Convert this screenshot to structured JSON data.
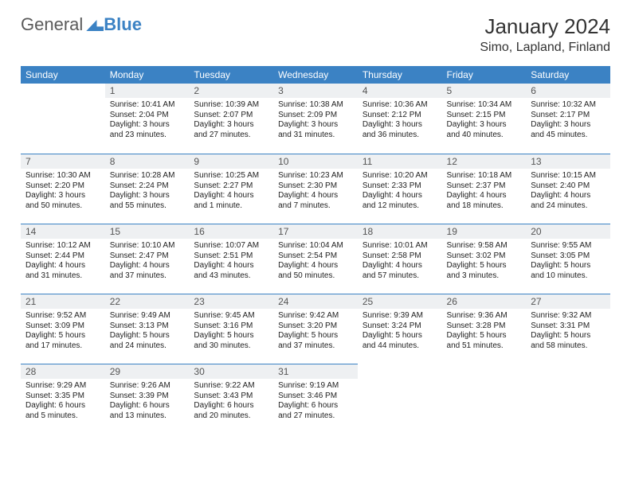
{
  "logo": {
    "word1": "General",
    "word2": "Blue"
  },
  "title": "January 2024",
  "location": "Simo, Lapland, Finland",
  "colors": {
    "header_bg": "#3b82c4",
    "header_fg": "#ffffff",
    "daynum_bg": "#eef0f2",
    "text": "#222222"
  },
  "weekdays": [
    "Sunday",
    "Monday",
    "Tuesday",
    "Wednesday",
    "Thursday",
    "Friday",
    "Saturday"
  ],
  "weeks": [
    [
      null,
      {
        "n": "1",
        "sr": "Sunrise: 10:41 AM",
        "ss": "Sunset: 2:04 PM",
        "d1": "Daylight: 3 hours",
        "d2": "and 23 minutes."
      },
      {
        "n": "2",
        "sr": "Sunrise: 10:39 AM",
        "ss": "Sunset: 2:07 PM",
        "d1": "Daylight: 3 hours",
        "d2": "and 27 minutes."
      },
      {
        "n": "3",
        "sr": "Sunrise: 10:38 AM",
        "ss": "Sunset: 2:09 PM",
        "d1": "Daylight: 3 hours",
        "d2": "and 31 minutes."
      },
      {
        "n": "4",
        "sr": "Sunrise: 10:36 AM",
        "ss": "Sunset: 2:12 PM",
        "d1": "Daylight: 3 hours",
        "d2": "and 36 minutes."
      },
      {
        "n": "5",
        "sr": "Sunrise: 10:34 AM",
        "ss": "Sunset: 2:15 PM",
        "d1": "Daylight: 3 hours",
        "d2": "and 40 minutes."
      },
      {
        "n": "6",
        "sr": "Sunrise: 10:32 AM",
        "ss": "Sunset: 2:17 PM",
        "d1": "Daylight: 3 hours",
        "d2": "and 45 minutes."
      }
    ],
    [
      {
        "n": "7",
        "sr": "Sunrise: 10:30 AM",
        "ss": "Sunset: 2:20 PM",
        "d1": "Daylight: 3 hours",
        "d2": "and 50 minutes."
      },
      {
        "n": "8",
        "sr": "Sunrise: 10:28 AM",
        "ss": "Sunset: 2:24 PM",
        "d1": "Daylight: 3 hours",
        "d2": "and 55 minutes."
      },
      {
        "n": "9",
        "sr": "Sunrise: 10:25 AM",
        "ss": "Sunset: 2:27 PM",
        "d1": "Daylight: 4 hours",
        "d2": "and 1 minute."
      },
      {
        "n": "10",
        "sr": "Sunrise: 10:23 AM",
        "ss": "Sunset: 2:30 PM",
        "d1": "Daylight: 4 hours",
        "d2": "and 7 minutes."
      },
      {
        "n": "11",
        "sr": "Sunrise: 10:20 AM",
        "ss": "Sunset: 2:33 PM",
        "d1": "Daylight: 4 hours",
        "d2": "and 12 minutes."
      },
      {
        "n": "12",
        "sr": "Sunrise: 10:18 AM",
        "ss": "Sunset: 2:37 PM",
        "d1": "Daylight: 4 hours",
        "d2": "and 18 minutes."
      },
      {
        "n": "13",
        "sr": "Sunrise: 10:15 AM",
        "ss": "Sunset: 2:40 PM",
        "d1": "Daylight: 4 hours",
        "d2": "and 24 minutes."
      }
    ],
    [
      {
        "n": "14",
        "sr": "Sunrise: 10:12 AM",
        "ss": "Sunset: 2:44 PM",
        "d1": "Daylight: 4 hours",
        "d2": "and 31 minutes."
      },
      {
        "n": "15",
        "sr": "Sunrise: 10:10 AM",
        "ss": "Sunset: 2:47 PM",
        "d1": "Daylight: 4 hours",
        "d2": "and 37 minutes."
      },
      {
        "n": "16",
        "sr": "Sunrise: 10:07 AM",
        "ss": "Sunset: 2:51 PM",
        "d1": "Daylight: 4 hours",
        "d2": "and 43 minutes."
      },
      {
        "n": "17",
        "sr": "Sunrise: 10:04 AM",
        "ss": "Sunset: 2:54 PM",
        "d1": "Daylight: 4 hours",
        "d2": "and 50 minutes."
      },
      {
        "n": "18",
        "sr": "Sunrise: 10:01 AM",
        "ss": "Sunset: 2:58 PM",
        "d1": "Daylight: 4 hours",
        "d2": "and 57 minutes."
      },
      {
        "n": "19",
        "sr": "Sunrise: 9:58 AM",
        "ss": "Sunset: 3:02 PM",
        "d1": "Daylight: 5 hours",
        "d2": "and 3 minutes."
      },
      {
        "n": "20",
        "sr": "Sunrise: 9:55 AM",
        "ss": "Sunset: 3:05 PM",
        "d1": "Daylight: 5 hours",
        "d2": "and 10 minutes."
      }
    ],
    [
      {
        "n": "21",
        "sr": "Sunrise: 9:52 AM",
        "ss": "Sunset: 3:09 PM",
        "d1": "Daylight: 5 hours",
        "d2": "and 17 minutes."
      },
      {
        "n": "22",
        "sr": "Sunrise: 9:49 AM",
        "ss": "Sunset: 3:13 PM",
        "d1": "Daylight: 5 hours",
        "d2": "and 24 minutes."
      },
      {
        "n": "23",
        "sr": "Sunrise: 9:45 AM",
        "ss": "Sunset: 3:16 PM",
        "d1": "Daylight: 5 hours",
        "d2": "and 30 minutes."
      },
      {
        "n": "24",
        "sr": "Sunrise: 9:42 AM",
        "ss": "Sunset: 3:20 PM",
        "d1": "Daylight: 5 hours",
        "d2": "and 37 minutes."
      },
      {
        "n": "25",
        "sr": "Sunrise: 9:39 AM",
        "ss": "Sunset: 3:24 PM",
        "d1": "Daylight: 5 hours",
        "d2": "and 44 minutes."
      },
      {
        "n": "26",
        "sr": "Sunrise: 9:36 AM",
        "ss": "Sunset: 3:28 PM",
        "d1": "Daylight: 5 hours",
        "d2": "and 51 minutes."
      },
      {
        "n": "27",
        "sr": "Sunrise: 9:32 AM",
        "ss": "Sunset: 3:31 PM",
        "d1": "Daylight: 5 hours",
        "d2": "and 58 minutes."
      }
    ],
    [
      {
        "n": "28",
        "sr": "Sunrise: 9:29 AM",
        "ss": "Sunset: 3:35 PM",
        "d1": "Daylight: 6 hours",
        "d2": "and 5 minutes."
      },
      {
        "n": "29",
        "sr": "Sunrise: 9:26 AM",
        "ss": "Sunset: 3:39 PM",
        "d1": "Daylight: 6 hours",
        "d2": "and 13 minutes."
      },
      {
        "n": "30",
        "sr": "Sunrise: 9:22 AM",
        "ss": "Sunset: 3:43 PM",
        "d1": "Daylight: 6 hours",
        "d2": "and 20 minutes."
      },
      {
        "n": "31",
        "sr": "Sunrise: 9:19 AM",
        "ss": "Sunset: 3:46 PM",
        "d1": "Daylight: 6 hours",
        "d2": "and 27 minutes."
      },
      null,
      null,
      null
    ]
  ]
}
